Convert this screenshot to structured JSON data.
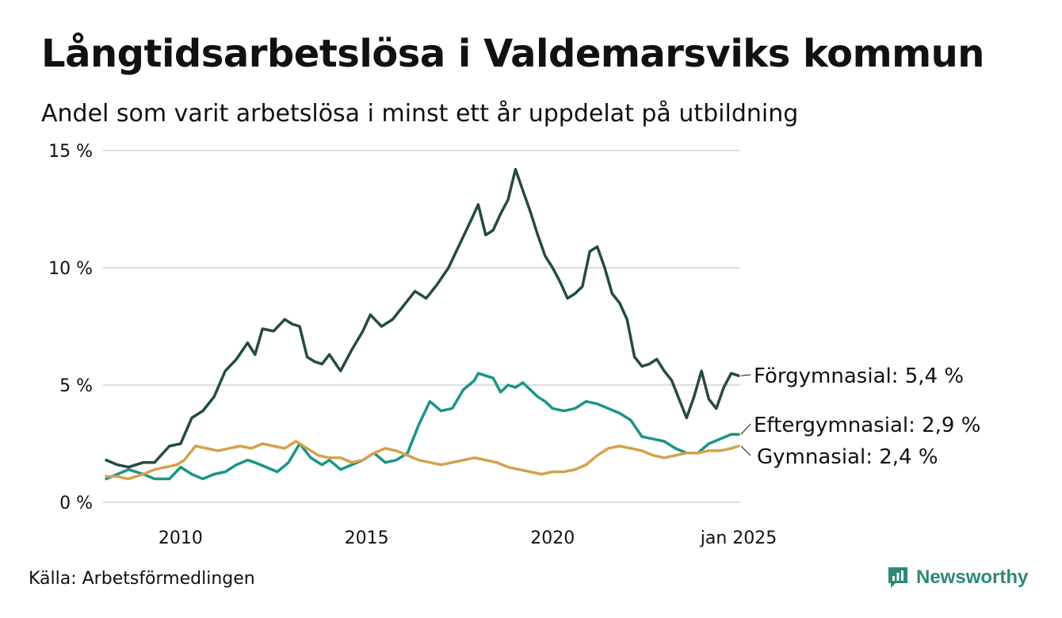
{
  "title": "Långtidsarbetslösa i Valdemarsviks kommun",
  "subtitle": "Andel som varit arbetslösa i minst ett år uppdelat på utbildning",
  "source": "Källa: Arbetsförmedlingen",
  "brand": "Newsworthy",
  "brand_icon": "newsworthy-logo-icon",
  "chart_data": {
    "type": "line",
    "title": "Långtidsarbetslösa i Valdemarsviks kommun",
    "xlabel": "",
    "ylabel": "",
    "xlim": [
      2008.0,
      2025.0
    ],
    "ylim": [
      0,
      15
    ],
    "grid": true,
    "y_ticks": [
      {
        "value": 0,
        "label": "0 %"
      },
      {
        "value": 5,
        "label": "5 %"
      },
      {
        "value": 10,
        "label": "10 %"
      },
      {
        "value": 15,
        "label": "15 %"
      }
    ],
    "x_ticks": [
      {
        "value": 2010,
        "label": "2010"
      },
      {
        "value": 2015,
        "label": "2015"
      },
      {
        "value": 2020,
        "label": "2020"
      },
      {
        "value": 2025,
        "label": "jan 2025"
      }
    ],
    "series": [
      {
        "name": "Förgymnasial",
        "end_label": "Förgymnasial: 5,4 %",
        "color": "#254a44",
        "x": [
          2008.0,
          2008.3,
          2008.6,
          2009.0,
          2009.3,
          2009.7,
          2010.0,
          2010.3,
          2010.6,
          2010.9,
          2011.2,
          2011.5,
          2011.8,
          2012.0,
          2012.2,
          2012.5,
          2012.8,
          2013.0,
          2013.2,
          2013.4,
          2013.6,
          2013.8,
          2014.0,
          2014.3,
          2014.6,
          2014.9,
          2015.1,
          2015.4,
          2015.7,
          2016.0,
          2016.3,
          2016.6,
          2016.9,
          2017.2,
          2017.5,
          2017.8,
          2018.0,
          2018.2,
          2018.4,
          2018.6,
          2018.8,
          2019.0,
          2019.2,
          2019.4,
          2019.6,
          2019.8,
          2020.0,
          2020.2,
          2020.4,
          2020.6,
          2020.8,
          2021.0,
          2021.2,
          2021.4,
          2021.6,
          2021.8,
          2022.0,
          2022.2,
          2022.4,
          2022.6,
          2022.8,
          2023.0,
          2023.2,
          2023.4,
          2023.6,
          2023.8,
          2024.0,
          2024.2,
          2024.4,
          2024.6,
          2024.8,
          2025.0
        ],
        "values": [
          1.8,
          1.6,
          1.5,
          1.7,
          1.7,
          2.4,
          2.5,
          3.6,
          3.9,
          4.5,
          5.6,
          6.1,
          6.8,
          6.3,
          7.4,
          7.3,
          7.8,
          7.6,
          7.5,
          6.2,
          6.0,
          5.9,
          6.3,
          5.6,
          6.5,
          7.3,
          8.0,
          7.5,
          7.8,
          8.4,
          9.0,
          8.7,
          9.3,
          10.0,
          11.0,
          12.0,
          12.7,
          11.4,
          11.6,
          12.3,
          12.9,
          14.2,
          13.3,
          12.4,
          11.4,
          10.5,
          10.0,
          9.4,
          8.7,
          8.9,
          9.2,
          10.7,
          10.9,
          10.0,
          8.9,
          8.5,
          7.8,
          6.2,
          5.8,
          5.9,
          6.1,
          5.6,
          5.2,
          4.4,
          3.6,
          4.5,
          5.6,
          4.4,
          4.0,
          4.9,
          5.5,
          5.4
        ]
      },
      {
        "name": "Eftergymnasial",
        "end_label": "Eftergymnasial: 2,9 %",
        "color": "#1a9585",
        "x": [
          2008.0,
          2008.3,
          2008.6,
          2009.0,
          2009.3,
          2009.7,
          2010.0,
          2010.3,
          2010.6,
          2010.9,
          2011.2,
          2011.5,
          2011.8,
          2012.0,
          2012.3,
          2012.6,
          2012.9,
          2013.2,
          2013.5,
          2013.8,
          2014.0,
          2014.3,
          2014.6,
          2014.9,
          2015.2,
          2015.5,
          2015.8,
          2016.1,
          2016.4,
          2016.7,
          2017.0,
          2017.3,
          2017.6,
          2017.9,
          2018.0,
          2018.2,
          2018.4,
          2018.6,
          2018.8,
          2019.0,
          2019.2,
          2019.4,
          2019.6,
          2019.8,
          2020.0,
          2020.3,
          2020.6,
          2020.9,
          2021.2,
          2021.5,
          2021.8,
          2022.1,
          2022.4,
          2022.7,
          2023.0,
          2023.3,
          2023.6,
          2023.9,
          2024.2,
          2024.5,
          2024.8,
          2025.0
        ],
        "values": [
          1.0,
          1.2,
          1.4,
          1.2,
          1.0,
          1.0,
          1.5,
          1.2,
          1.0,
          1.2,
          1.3,
          1.6,
          1.8,
          1.7,
          1.5,
          1.3,
          1.7,
          2.5,
          1.9,
          1.6,
          1.8,
          1.4,
          1.6,
          1.8,
          2.1,
          1.7,
          1.8,
          2.1,
          3.3,
          4.3,
          3.9,
          4.0,
          4.8,
          5.2,
          5.5,
          5.4,
          5.3,
          4.7,
          5.0,
          4.9,
          5.1,
          4.8,
          4.5,
          4.3,
          4.0,
          3.9,
          4.0,
          4.3,
          4.2,
          4.0,
          3.8,
          3.5,
          2.8,
          2.7,
          2.6,
          2.3,
          2.1,
          2.1,
          2.5,
          2.7,
          2.9,
          2.9
        ]
      },
      {
        "name": "Gymnasial",
        "end_label": "Gymnasial: 2,4 %",
        "color": "#d4a14d",
        "x": [
          2008.0,
          2008.3,
          2008.6,
          2009.0,
          2009.3,
          2009.6,
          2009.9,
          2010.1,
          2010.4,
          2010.7,
          2011.0,
          2011.3,
          2011.6,
          2011.9,
          2012.2,
          2012.5,
          2012.8,
          2013.1,
          2013.4,
          2013.7,
          2014.0,
          2014.3,
          2014.6,
          2014.9,
          2015.2,
          2015.5,
          2015.8,
          2016.1,
          2016.4,
          2016.7,
          2017.0,
          2017.3,
          2017.6,
          2017.9,
          2018.2,
          2018.5,
          2018.8,
          2019.1,
          2019.4,
          2019.7,
          2020.0,
          2020.3,
          2020.6,
          2020.9,
          2021.2,
          2021.5,
          2021.8,
          2022.1,
          2022.4,
          2022.7,
          2023.0,
          2023.3,
          2023.6,
          2023.9,
          2024.2,
          2024.5,
          2024.8,
          2025.0
        ],
        "values": [
          1.1,
          1.1,
          1.0,
          1.2,
          1.4,
          1.5,
          1.6,
          1.8,
          2.4,
          2.3,
          2.2,
          2.3,
          2.4,
          2.3,
          2.5,
          2.4,
          2.3,
          2.6,
          2.3,
          2.0,
          1.9,
          1.9,
          1.7,
          1.8,
          2.1,
          2.3,
          2.2,
          2.0,
          1.8,
          1.7,
          1.6,
          1.7,
          1.8,
          1.9,
          1.8,
          1.7,
          1.5,
          1.4,
          1.3,
          1.2,
          1.3,
          1.3,
          1.4,
          1.6,
          2.0,
          2.3,
          2.4,
          2.3,
          2.2,
          2.0,
          1.9,
          2.0,
          2.1,
          2.1,
          2.2,
          2.2,
          2.3,
          2.4
        ]
      }
    ]
  }
}
